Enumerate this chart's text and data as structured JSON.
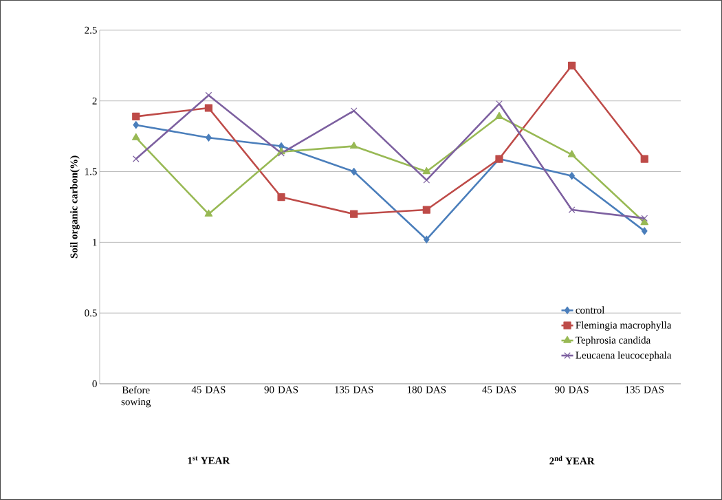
{
  "chart_data": {
    "type": "line",
    "ylabel": "Soil organic carbon(%)",
    "categories": [
      "Before sowing",
      "45 DAS",
      "90 DAS",
      "135 DAS",
      "180 DAS",
      "45 DAS",
      "90 DAS",
      "135 DAS"
    ],
    "series": [
      {
        "name": "control",
        "color": "#4a7ebb",
        "marker": "diamond",
        "values": [
          1.83,
          1.74,
          1.68,
          1.5,
          1.02,
          1.59,
          1.47,
          1.08
        ]
      },
      {
        "name": "Flemingia macrophylla",
        "color": "#be4b48",
        "marker": "square",
        "values": [
          1.89,
          1.95,
          1.32,
          1.2,
          1.23,
          1.59,
          2.25,
          1.59
        ]
      },
      {
        "name": "Tephrosia candida",
        "color": "#98b954",
        "marker": "triangle",
        "values": [
          1.74,
          1.2,
          1.64,
          1.68,
          1.5,
          1.89,
          1.62,
          1.14
        ]
      },
      {
        "name": "Leucaena leucocephala",
        "color": "#7d60a0",
        "marker": "cross",
        "values": [
          1.59,
          2.04,
          1.63,
          1.93,
          1.44,
          1.98,
          1.23,
          1.17
        ]
      }
    ],
    "ylim": [
      0,
      2.5
    ],
    "yticks": [
      0,
      0.5,
      1,
      1.5,
      2,
      2.5
    ],
    "grid": "y",
    "legend": "bottom right",
    "annotations": [
      "1$^{st}$  YEAR",
      "2$^{nd}$ YEAR"
    ]
  }
}
